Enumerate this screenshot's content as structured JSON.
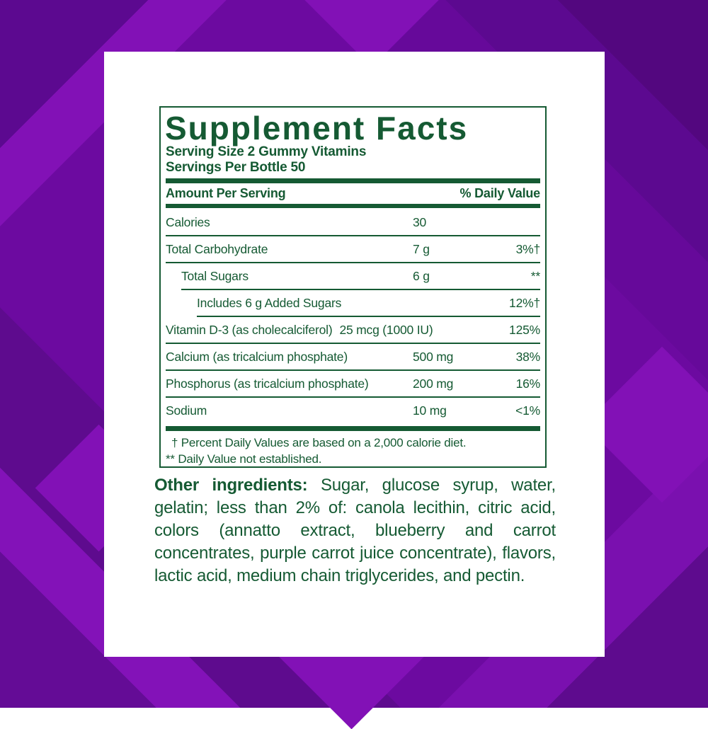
{
  "colors": {
    "background_base": "#6C0AA0",
    "background_bright": "#8211B6",
    "background_dark": "#5C0990",
    "background_darkest": "#53077F",
    "card": "#FFFFFF",
    "label_green": "#155A33"
  },
  "panel": {
    "title": "Supplement Facts",
    "serving_size": "Serving Size 2 Gummy Vitamins",
    "servings_per_bottle": "Servings Per Bottle 50",
    "columns_header": {
      "left": "Amount Per Serving",
      "right": "% Daily Value"
    },
    "rows": [
      {
        "name": "Calories",
        "amount": "30",
        "dv": "",
        "indent": 0
      },
      {
        "name": "Total Carbohydrate",
        "amount": "7 g",
        "dv": "3%†",
        "indent": 0
      },
      {
        "name": "Total Sugars",
        "amount": "6 g",
        "dv": "**",
        "indent": 1
      },
      {
        "name": "Includes 6 g Added Sugars",
        "amount": "",
        "dv": "12%†",
        "indent": 2
      },
      {
        "name": "Vitamin D-3 (as cholecalciferol)",
        "amount": "25 mcg (1000 IU)",
        "dv": "125%",
        "indent": 0
      },
      {
        "name": "Calcium (as tricalcium phosphate)",
        "amount": "500 mg",
        "dv": "38%",
        "indent": 0
      },
      {
        "name": "Phosphorus (as tricalcium phosphate)",
        "amount": "200 mg",
        "dv": "16%",
        "indent": 0
      },
      {
        "name": "Sodium",
        "amount": "10 mg",
        "dv": "<1%",
        "indent": 0
      }
    ],
    "footnotes": [
      "† Percent Daily Values are based on a 2,000 calorie diet.",
      "** Daily Value not established."
    ]
  },
  "ingredients": {
    "label": "Other ingredients:",
    "text": " Sugar, glucose syrup, water, gelatin; less than 2% of: canola lecithin, citric acid, colors (annatto extract, blueberry and carrot concentrates, purple carrot juice concentrate), flavors, lactic acid, medium chain triglycerides, and pectin."
  }
}
